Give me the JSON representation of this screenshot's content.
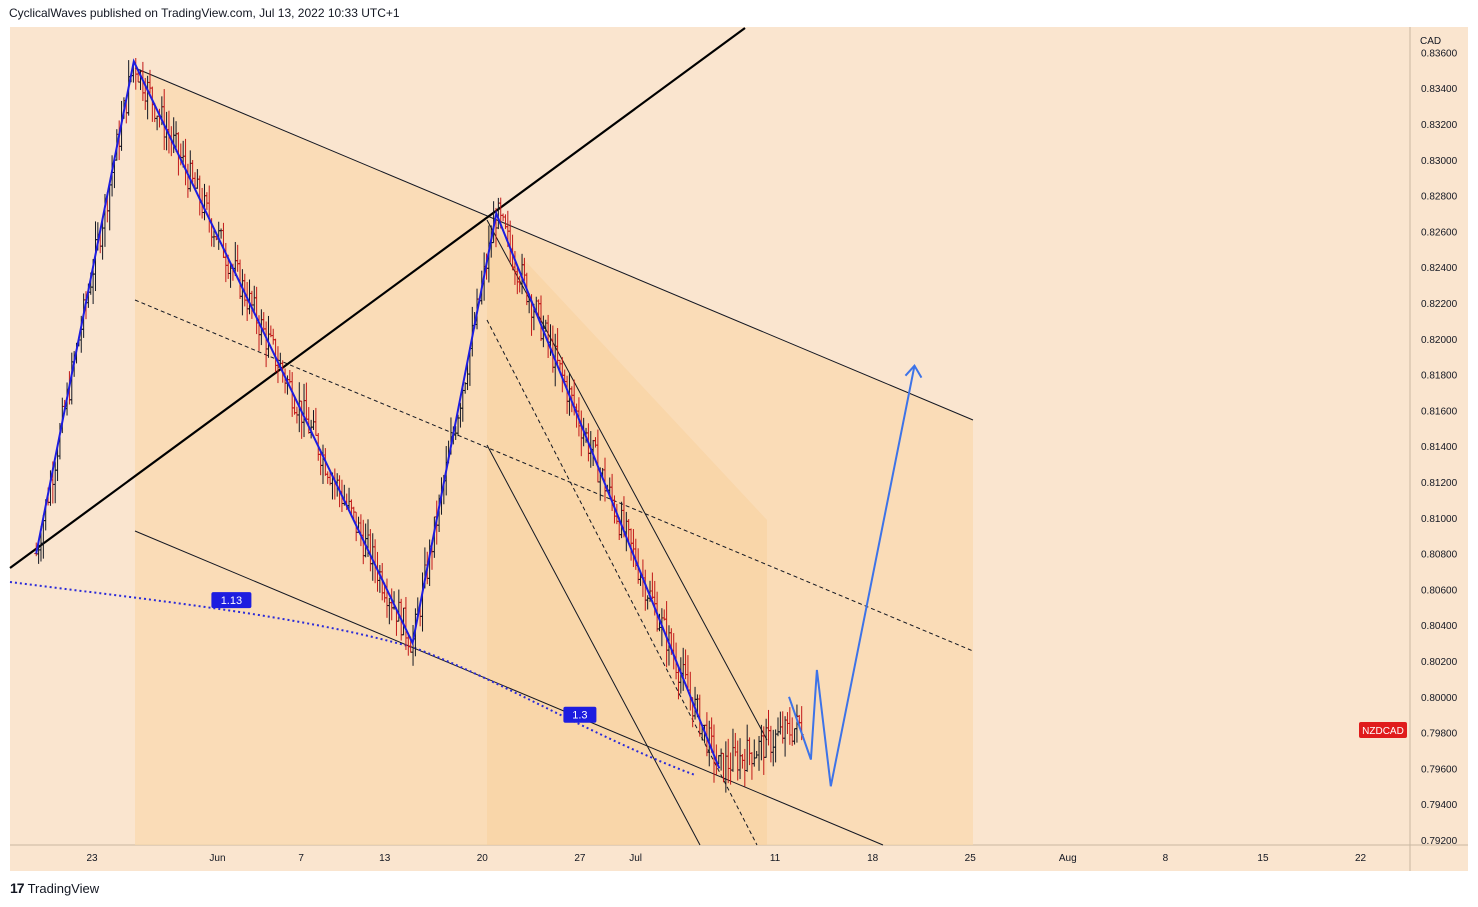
{
  "header": {
    "published": "CyclicalWaves published on TradingView.com, Jul 13, 2022 10:33 UTC+1"
  },
  "footer": {
    "brand": "TradingView",
    "logo_icon": "tradingview-logo-icon"
  },
  "colors": {
    "background": "#fae5cf",
    "channel_fill": "#f9d9ad",
    "candle_up": "#131722",
    "candle_down": "#c21818",
    "wave_line": "#1d1de0",
    "projection_arrow": "#3d73e8",
    "fib_dotted": "#2a2ad8",
    "symbol_badge": "#e01c1c"
  },
  "chart_data": {
    "type": "candlestick",
    "symbol": "NZDCAD",
    "currency": "CAD",
    "last_price": 0.7985,
    "ylim": [
      0.792,
      0.8365
    ],
    "y_ticks": [
      "0.83600",
      "0.83400",
      "0.83200",
      "0.83000",
      "0.82800",
      "0.82600",
      "0.82400",
      "0.82200",
      "0.82000",
      "0.81800",
      "0.81600",
      "0.81400",
      "0.81200",
      "0.81000",
      "0.80800",
      "0.80600",
      "0.80400",
      "0.80200",
      "0.80000",
      "0.79800",
      "0.79600",
      "0.79400",
      "0.79200"
    ],
    "x_ticks": [
      "23",
      "Jun",
      "7",
      "13",
      "20",
      "27",
      "Jul",
      "11",
      "18",
      "25",
      "Aug",
      "8",
      "15",
      "22"
    ],
    "wave_path": [
      {
        "x": "2022-05-19",
        "y": 0.808
      },
      {
        "x": "2022-05-26",
        "y": 0.8355
      },
      {
        "x": "2022-06-15",
        "y": 0.803
      },
      {
        "x": "2022-06-21",
        "y": 0.827
      },
      {
        "x": "2022-07-07",
        "y": 0.796
      }
    ],
    "projection_path": [
      {
        "x": "2022-07-12",
        "y": 0.8
      },
      {
        "x": "2022-07-13",
        "y": 0.7965
      },
      {
        "x": "2022-07-13",
        "y": 0.8015
      },
      {
        "x": "2022-07-15",
        "y": 0.795
      },
      {
        "x": "2022-07-21",
        "y": 0.8185
      }
    ],
    "fib_labels": [
      {
        "label": "1.13",
        "x": "2022-06-02",
        "y": 0.8054
      },
      {
        "label": "1.3",
        "x": "2022-06-27",
        "y": 0.799
      }
    ],
    "candle_summary": {
      "start": "2022-05-19",
      "end": "2022-07-13",
      "open": 0.81,
      "high": 0.8355,
      "low": 0.794,
      "close": 0.7985
    }
  }
}
